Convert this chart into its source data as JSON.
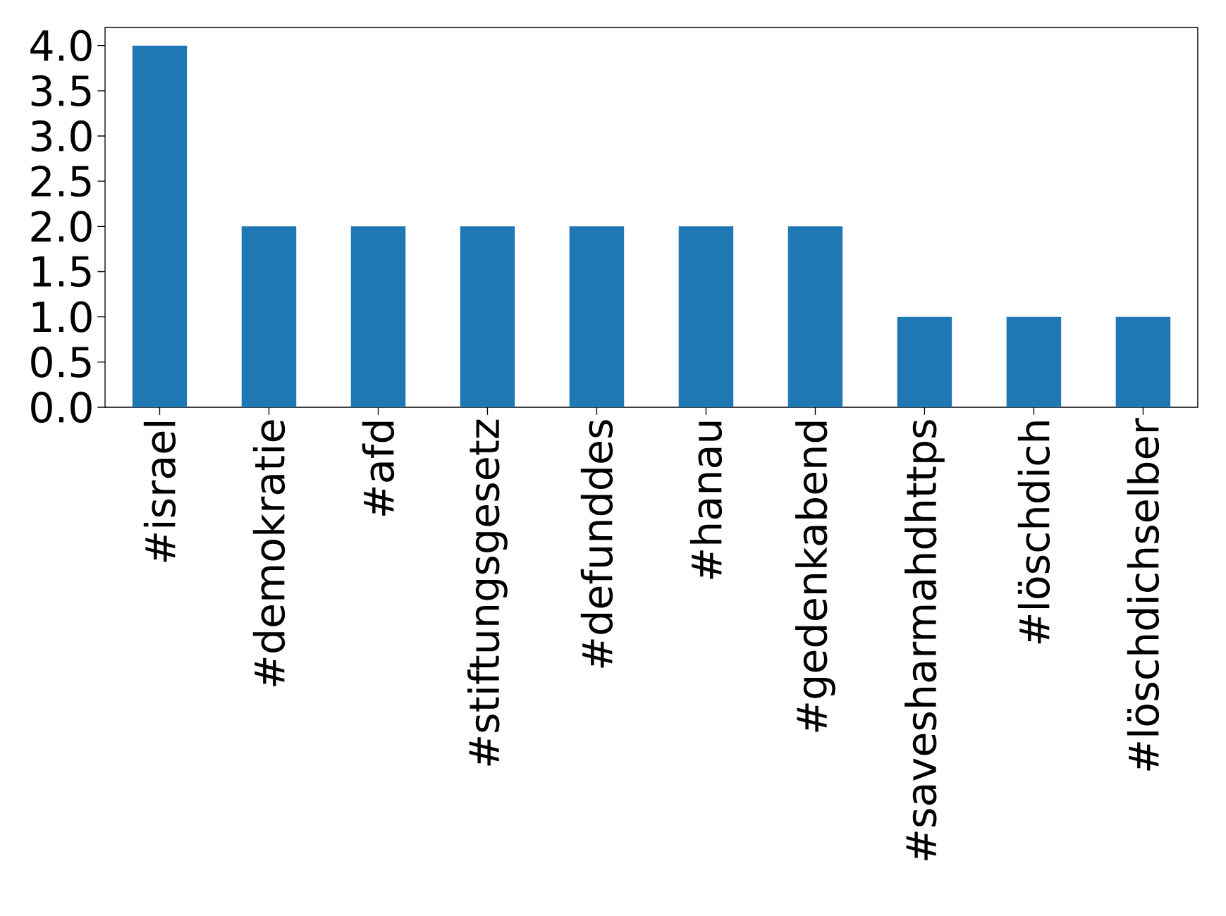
{
  "chart_data": {
    "type": "bar",
    "categories": [
      "#israel",
      "#demokratie",
      "#afd",
      "#stiftungsgesetz",
      "#defunddes",
      "#hanau",
      "#gedenkabend",
      "#savesharmahdhttps",
      "#löschdich",
      "#löschdichselber"
    ],
    "values": [
      4,
      2,
      2,
      2,
      2,
      2,
      2,
      1,
      1,
      1
    ],
    "color": "#1f77b4",
    "ylim": [
      0,
      4.2
    ],
    "yticks": [
      {
        "value": 0,
        "label": "0.0"
      },
      {
        "value": 0.5,
        "label": "0.5"
      },
      {
        "value": 1,
        "label": "1.0"
      },
      {
        "value": 1.5,
        "label": "1.5"
      },
      {
        "value": 2,
        "label": "2.0"
      },
      {
        "value": 2.5,
        "label": "2.5"
      },
      {
        "value": 3,
        "label": "3.0"
      },
      {
        "value": 3.5,
        "label": "3.5"
      },
      {
        "value": 4,
        "label": "4.0"
      }
    ]
  }
}
